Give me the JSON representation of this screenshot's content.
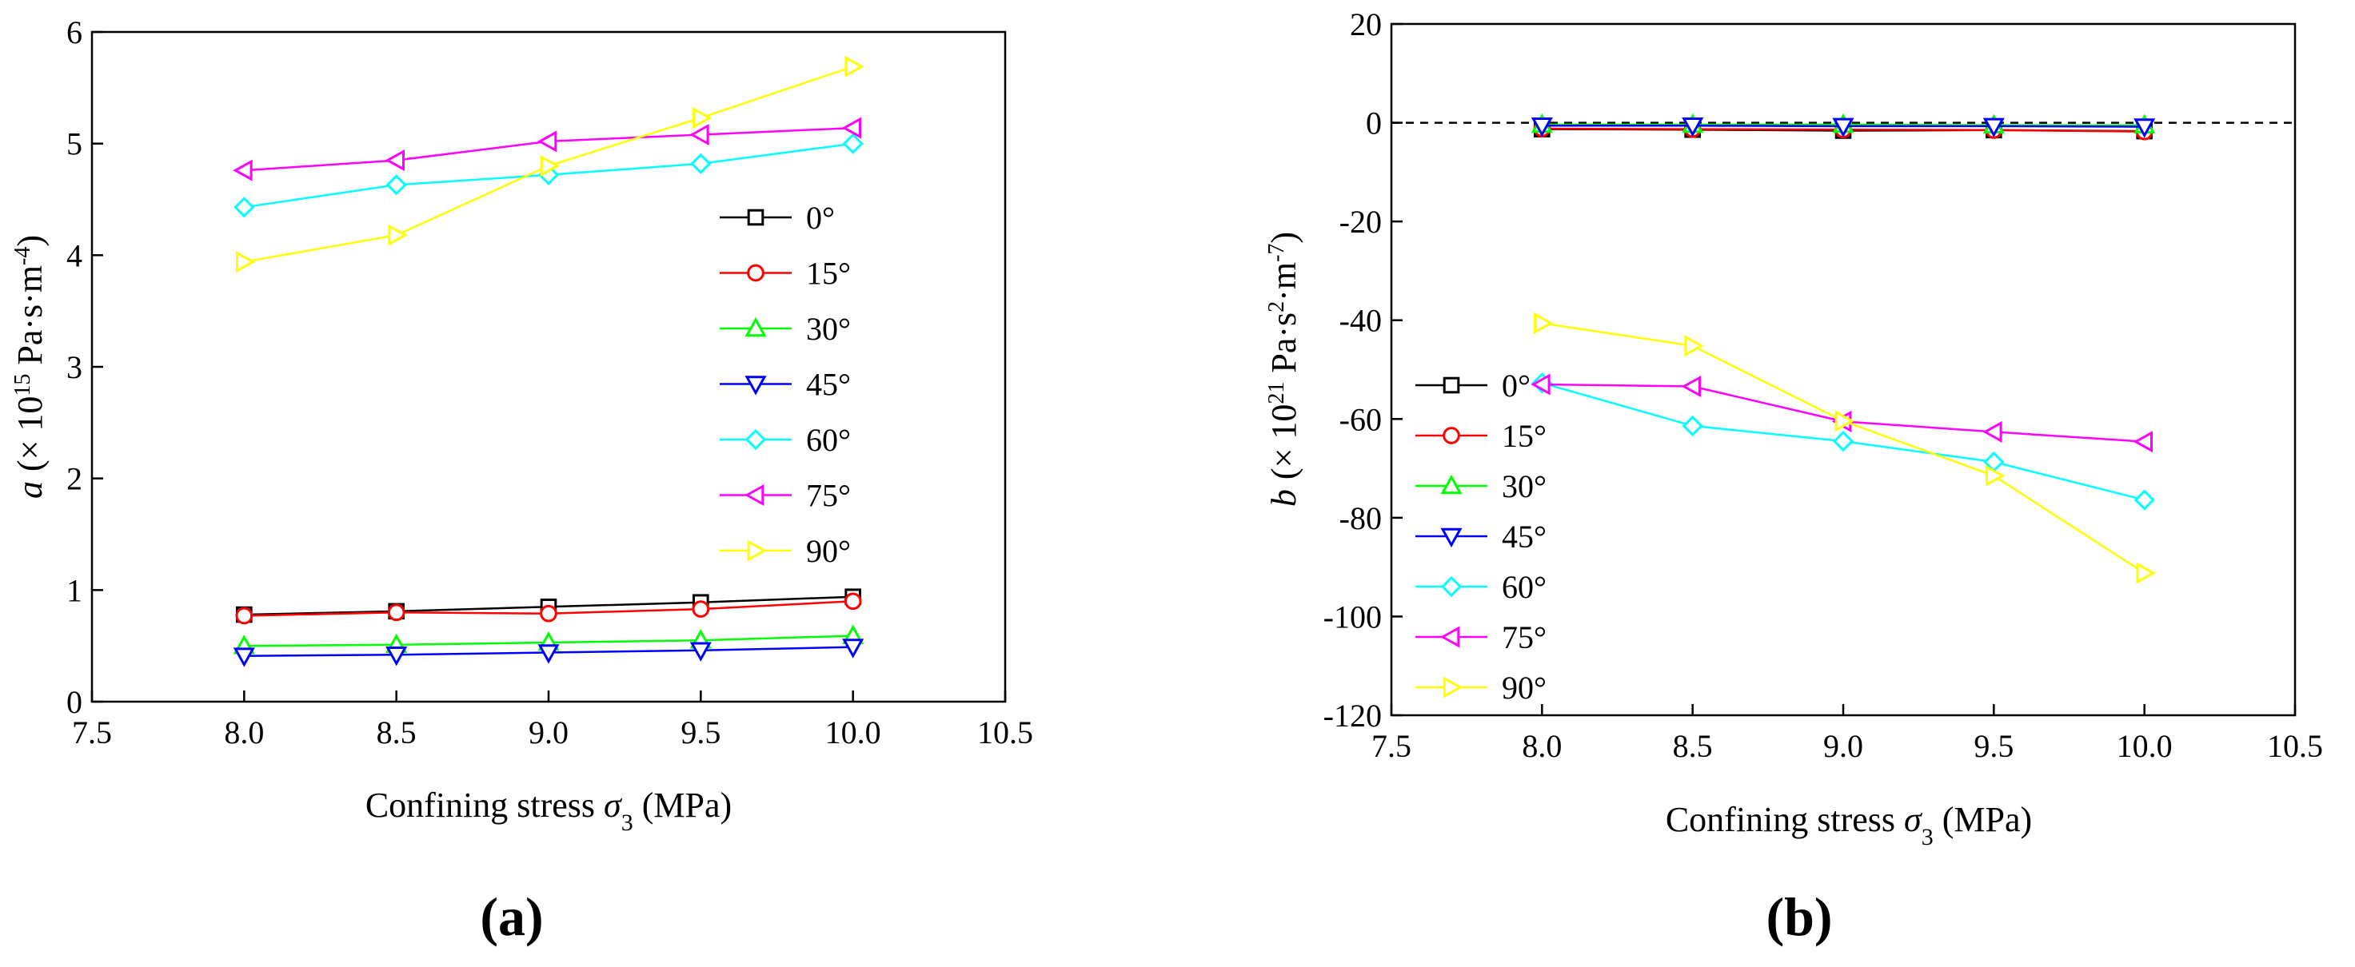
{
  "chart_data": [
    {
      "type": "line",
      "panel_label": "(a)",
      "title": "",
      "xlabel": "Confining stress σ3 (MPa)",
      "xlabel_parts": {
        "pre": "Confining stress ",
        "sym": "σ",
        "sub": "3",
        "post": " (MPa)"
      },
      "ylabel": "a (× 10^15 Pa·s·m^-4)",
      "ylabel_parts": {
        "var": "a",
        "pre": "(× 10",
        "exp": "15",
        "mid": " Pa·s·m",
        "exp2": "-4",
        "post": ")"
      },
      "xlim": [
        7.5,
        10.5
      ],
      "ylim": [
        0,
        6
      ],
      "xticks": [
        "7.5",
        "8.0",
        "8.5",
        "9.0",
        "9.5",
        "10.0",
        "10.5"
      ],
      "yticks": [
        "0",
        "1",
        "2",
        "3",
        "4",
        "5",
        "6"
      ],
      "legend_position": "right-middle",
      "x": [
        8.0,
        8.5,
        9.0,
        9.5,
        10.0
      ],
      "series": [
        {
          "name": "0°",
          "color": "#000000",
          "marker": "square",
          "values": [
            0.78,
            0.81,
            0.85,
            0.89,
            0.94
          ]
        },
        {
          "name": "15°",
          "color": "#ff0000",
          "marker": "circle",
          "values": [
            0.77,
            0.8,
            0.79,
            0.83,
            0.9
          ]
        },
        {
          "name": "30°",
          "color": "#00ff00",
          "marker": "triangle-up",
          "values": [
            0.5,
            0.51,
            0.53,
            0.55,
            0.59
          ]
        },
        {
          "name": "45°",
          "color": "#0000ff",
          "marker": "triangle-down",
          "values": [
            0.41,
            0.42,
            0.44,
            0.46,
            0.49
          ]
        },
        {
          "name": "60°",
          "color": "#00ffff",
          "marker": "diamond",
          "values": [
            4.43,
            4.63,
            4.72,
            4.82,
            5.0
          ]
        },
        {
          "name": "75°",
          "color": "#ff00ff",
          "marker": "triangle-left",
          "values": [
            4.76,
            4.85,
            5.02,
            5.08,
            5.14
          ]
        },
        {
          "name": "90°",
          "color": "#ffff00",
          "marker": "triangle-right",
          "values": [
            3.94,
            4.18,
            4.8,
            5.23,
            5.69
          ]
        }
      ]
    },
    {
      "type": "line",
      "panel_label": "(b)",
      "title": "",
      "xlabel": "Confining stress σ3 (MPa)",
      "xlabel_parts": {
        "pre": "Confining stress ",
        "sym": "σ",
        "sub": "3",
        "post": " (MPa)"
      },
      "ylabel": "b (× 10^21 Pa·s^2·m^-7)",
      "ylabel_parts": {
        "var": "b",
        "pre": "(× 10",
        "exp": "21",
        "mid": " Pa·s",
        "exp2": "2",
        "mid2": "·m",
        "exp3": "-7",
        "post": ")"
      },
      "xlim": [
        7.5,
        10.5
      ],
      "ylim": [
        -120,
        20
      ],
      "xticks": [
        "7.5",
        "8.0",
        "8.5",
        "9.0",
        "9.5",
        "10.0",
        "10.5"
      ],
      "yticks": [
        "-120",
        "-100",
        "-80",
        "-60",
        "-40",
        "-20",
        "0",
        "20"
      ],
      "reference_line": {
        "y": 0,
        "style": "dashed"
      },
      "legend_position": "left-lower",
      "x": [
        8.0,
        8.5,
        9.0,
        9.5,
        10.0
      ],
      "series": [
        {
          "name": "0°",
          "color": "#000000",
          "marker": "square",
          "values": [
            -1.3,
            -1.4,
            -1.6,
            -1.5,
            -1.7
          ]
        },
        {
          "name": "15°",
          "color": "#ff0000",
          "marker": "circle",
          "values": [
            -1.2,
            -1.3,
            -1.4,
            -1.5,
            -1.8
          ]
        },
        {
          "name": "30°",
          "color": "#00ff00",
          "marker": "triangle-up",
          "values": [
            -0.4,
            -0.4,
            -0.4,
            -0.5,
            -0.5
          ]
        },
        {
          "name": "45°",
          "color": "#0000ff",
          "marker": "triangle-down",
          "values": [
            -0.6,
            -0.6,
            -0.7,
            -0.7,
            -0.8
          ]
        },
        {
          "name": "60°",
          "color": "#00ffff",
          "marker": "diamond",
          "values": [
            -52.7,
            -61.4,
            -64.5,
            -68.7,
            -76.4
          ]
        },
        {
          "name": "75°",
          "color": "#ff00ff",
          "marker": "triangle-left",
          "values": [
            -53.0,
            -53.4,
            -60.5,
            -62.6,
            -64.6
          ]
        },
        {
          "name": "90°",
          "color": "#ffff00",
          "marker": "triangle-right",
          "values": [
            -40.6,
            -45.2,
            -60.4,
            -71.5,
            -91.2
          ]
        }
      ]
    }
  ]
}
